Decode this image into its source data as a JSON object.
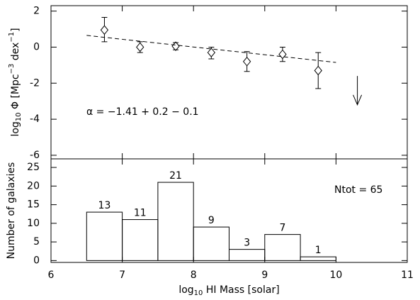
{
  "chart_data": [
    {
      "type": "errorbar",
      "ylabel_parts": [
        "log",
        "10",
        " Φ [Mpc",
        "−3",
        " dex",
        "−1",
        "]"
      ],
      "xlim": [
        6,
        11
      ],
      "xticks": [
        6,
        7,
        8,
        9,
        10,
        11
      ],
      "ylim": [
        -6.2,
        2.3
      ],
      "yticks": [
        -6,
        -4,
        -2,
        0,
        2
      ],
      "series": [
        {
          "color": "#000000",
          "x": [
            6.75,
            7.25,
            7.75,
            8.25,
            8.75,
            9.25,
            9.75
          ],
          "y": [
            0.95,
            0.0,
            0.05,
            -0.3,
            -0.8,
            -0.4,
            -1.3
          ],
          "err_plus": [
            0.7,
            0.3,
            0.2,
            0.3,
            0.55,
            0.4,
            1.0
          ],
          "err_minus": [
            0.65,
            0.3,
            0.2,
            0.35,
            0.55,
            0.4,
            1.0
          ]
        }
      ],
      "fit": {
        "x": [
          6.5,
          10
        ],
        "y": [
          0.65,
          -0.85
        ]
      },
      "upper_limit": {
        "x": 10.3,
        "y": -1.6,
        "y_end": -3.2
      },
      "annotation": "α  =  −1.41  +  0.2  −  0.1"
    },
    {
      "type": "histogram",
      "xlabel_parts": [
        "log",
        "10",
        " HI Mass [solar]"
      ],
      "ylabel": "Number of galaxies",
      "bins": [
        6.5,
        7,
        7.5,
        8,
        8.5,
        9,
        9.5,
        10
      ],
      "counts": [
        13,
        11,
        21,
        9,
        3,
        7,
        1
      ],
      "xlim": [
        6,
        11
      ],
      "xticks": [
        6,
        7,
        8,
        9,
        10,
        11
      ],
      "ylim": [
        -0.5,
        27.3
      ],
      "yticks": [
        0,
        5,
        10,
        15,
        20,
        25
      ],
      "color": "#000000",
      "annotation": "Ntot =   65"
    }
  ]
}
